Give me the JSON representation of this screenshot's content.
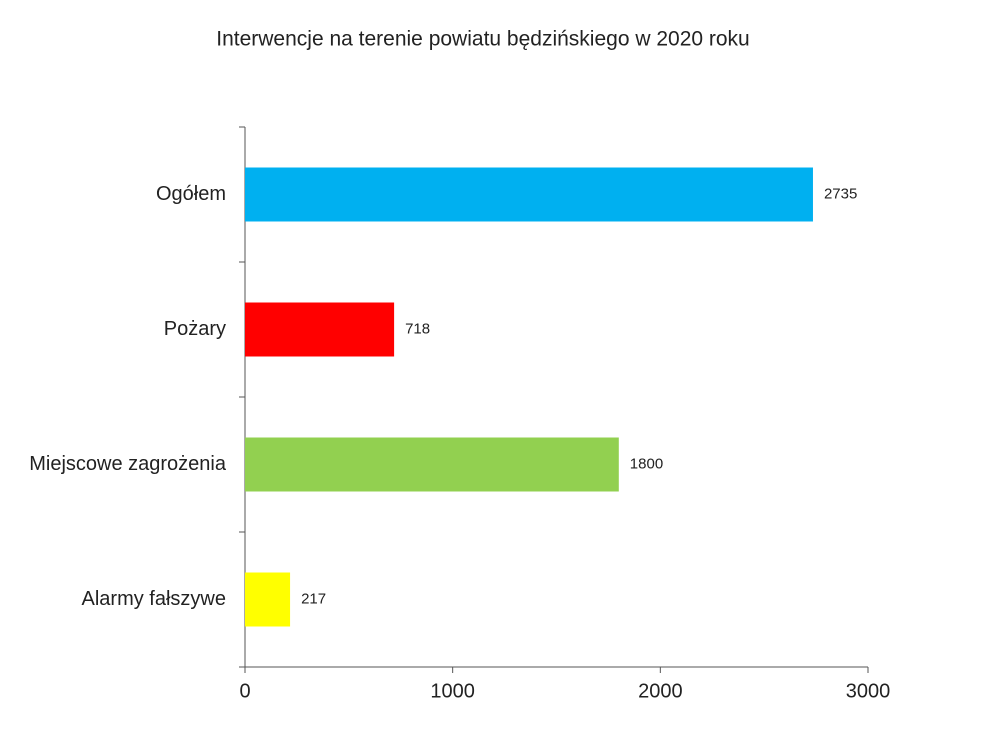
{
  "chart_data": {
    "type": "bar",
    "orientation": "horizontal",
    "title": "Interwencje na terenie powiatu będzińskiego w 2020 roku",
    "categories": [
      "Ogółem",
      "Pożary",
      "Miejscowe zagrożenia",
      "Alarmy fałszywe"
    ],
    "values": [
      2735,
      718,
      1800,
      217
    ],
    "colors": [
      "#00b0f0",
      "#ff0000",
      "#92d050",
      "#ffff00"
    ],
    "xlim": [
      0,
      3000
    ],
    "xticks": [
      0,
      1000,
      2000,
      3000
    ]
  }
}
